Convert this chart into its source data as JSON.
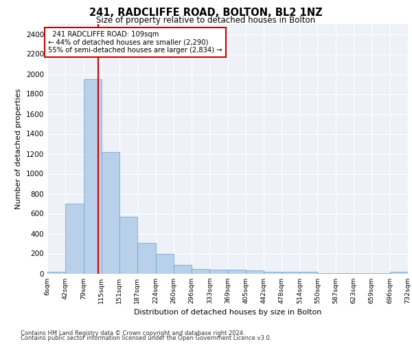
{
  "title": "241, RADCLIFFE ROAD, BOLTON, BL2 1NZ",
  "subtitle": "Size of property relative to detached houses in Bolton",
  "xlabel": "Distribution of detached houses by size in Bolton",
  "ylabel": "Number of detached properties",
  "property_size": 109,
  "property_label": "241 RADCLIFFE ROAD: 109sqm",
  "pct_smaller": 44,
  "n_smaller": 2290,
  "pct_larger": 55,
  "n_larger": 2834,
  "bin_edges": [
    6,
    42,
    79,
    115,
    151,
    187,
    224,
    260,
    296,
    333,
    369,
    405,
    442,
    478,
    514,
    550,
    587,
    623,
    659,
    696,
    732
  ],
  "bin_labels": [
    "6sqm",
    "42sqm",
    "79sqm",
    "115sqm",
    "151sqm",
    "187sqm",
    "224sqm",
    "260sqm",
    "296sqm",
    "333sqm",
    "369sqm",
    "405sqm",
    "442sqm",
    "478sqm",
    "514sqm",
    "550sqm",
    "587sqm",
    "623sqm",
    "659sqm",
    "696sqm",
    "732sqm"
  ],
  "bar_heights": [
    15,
    700,
    1950,
    1220,
    570,
    305,
    200,
    85,
    45,
    37,
    35,
    30,
    20,
    20,
    18,
    2,
    2,
    2,
    2,
    15
  ],
  "bar_color": "#b8d0ea",
  "bar_edge_color": "#6a9fc8",
  "vline_color": "#cc0000",
  "annotation_box_color": "#cc0000",
  "background_color": "#eef2f8",
  "grid_color": "#ffffff",
  "ylim": [
    0,
    2500
  ],
  "yticks": [
    0,
    200,
    400,
    600,
    800,
    1000,
    1200,
    1400,
    1600,
    1800,
    2000,
    2200,
    2400
  ],
  "footer_line1": "Contains HM Land Registry data © Crown copyright and database right 2024.",
  "footer_line2": "Contains public sector information licensed under the Open Government Licence v3.0."
}
